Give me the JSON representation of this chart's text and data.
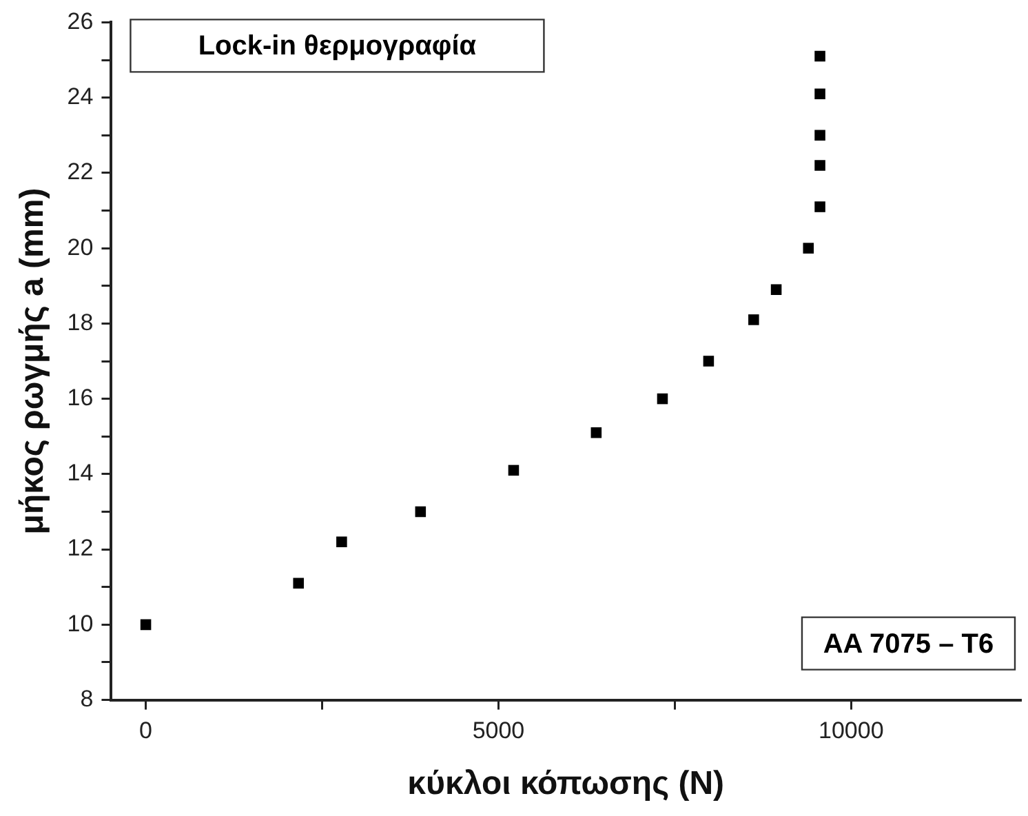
{
  "chart_data": {
    "type": "scatter",
    "xlabel": "κύκλοι κόπωσης (N)",
    "ylabel": "μήκος ρωγμής a (mm)",
    "annotations": [
      "Lock-in θερμογραφία",
      "AA 7075 – T6"
    ],
    "x": [
      0,
      2165,
      2777,
      3895,
      5215,
      6386,
      7325,
      7979,
      8618,
      8938,
      9394,
      9558,
      9558,
      9558,
      9558,
      9558
    ],
    "series": [
      {
        "color": "#000000",
        "values": [
          10.0,
          11.1,
          12.2,
          13.0,
          14.1,
          15.1,
          16.0,
          17.0,
          18.1,
          18.9,
          20.0,
          21.1,
          22.2,
          23.0,
          24.1,
          25.1
        ]
      }
    ],
    "xlim": [
      -490,
      12400
    ],
    "ylim": [
      8,
      26
    ],
    "xticks": [
      0,
      {
        "value": 2500,
        "label": null
      },
      5000,
      {
        "value": 7500,
        "label": null
      },
      10000
    ],
    "yticks": [
      8,
      {
        "value": 9,
        "label": null
      },
      10,
      {
        "value": 11,
        "label": null
      },
      12,
      {
        "value": 13,
        "label": null
      },
      14,
      {
        "value": 15,
        "label": null
      },
      16,
      {
        "value": 17,
        "label": null
      },
      18,
      {
        "value": 19,
        "label": null
      },
      20,
      {
        "value": 21,
        "label": null
      },
      22,
      {
        "value": 23,
        "label": null
      },
      24,
      {
        "value": 25,
        "label": null
      },
      26
    ],
    "marker": "square",
    "grid": false,
    "legend": false
  }
}
